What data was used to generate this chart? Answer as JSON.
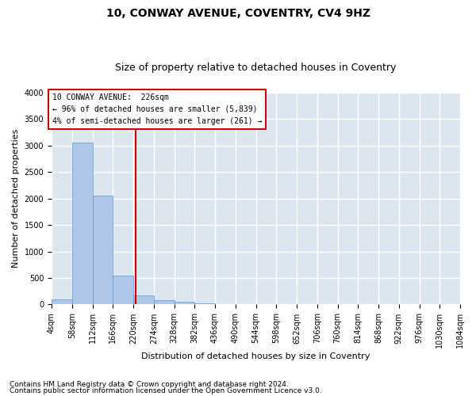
{
  "title_line1": "10, CONWAY AVENUE, COVENTRY, CV4 9HZ",
  "title_line2": "Size of property relative to detached houses in Coventry",
  "xlabel": "Distribution of detached houses by size in Coventry",
  "ylabel": "Number of detached properties",
  "footer1": "Contains HM Land Registry data © Crown copyright and database right 2024.",
  "footer2": "Contains public sector information licensed under the Open Government Licence v3.0.",
  "annotation_line1": "10 CONWAY AVENUE:  226sqm",
  "annotation_line2": "← 96% of detached houses are smaller (5,839)",
  "annotation_line3": "4% of semi-detached houses are larger (261) →",
  "property_size": 226,
  "bin_edges": [
    4,
    58,
    112,
    166,
    220,
    274,
    328,
    382,
    436,
    490,
    544,
    598,
    652,
    706,
    760,
    814,
    868,
    922,
    976,
    1030,
    1084
  ],
  "bar_heights": [
    100,
    3050,
    2050,
    550,
    175,
    75,
    50,
    20,
    5,
    5,
    0,
    0,
    0,
    0,
    0,
    0,
    0,
    0,
    0,
    0
  ],
  "bar_color": "#aec6e8",
  "bar_edge_color": "#5b9bd5",
  "vline_color": "#cc0000",
  "vline_x": 226,
  "annotation_box_color": "#cc0000",
  "background_color": "#dce6f1",
  "grid_color": "#ffffff",
  "ylim": [
    0,
    4000
  ],
  "yticks": [
    0,
    500,
    1000,
    1500,
    2000,
    2500,
    3000,
    3500,
    4000
  ],
  "title_fontsize": 10,
  "subtitle_fontsize": 9,
  "axis_label_fontsize": 8,
  "tick_fontsize": 7,
  "annotation_fontsize": 7,
  "footer_fontsize": 6.5
}
